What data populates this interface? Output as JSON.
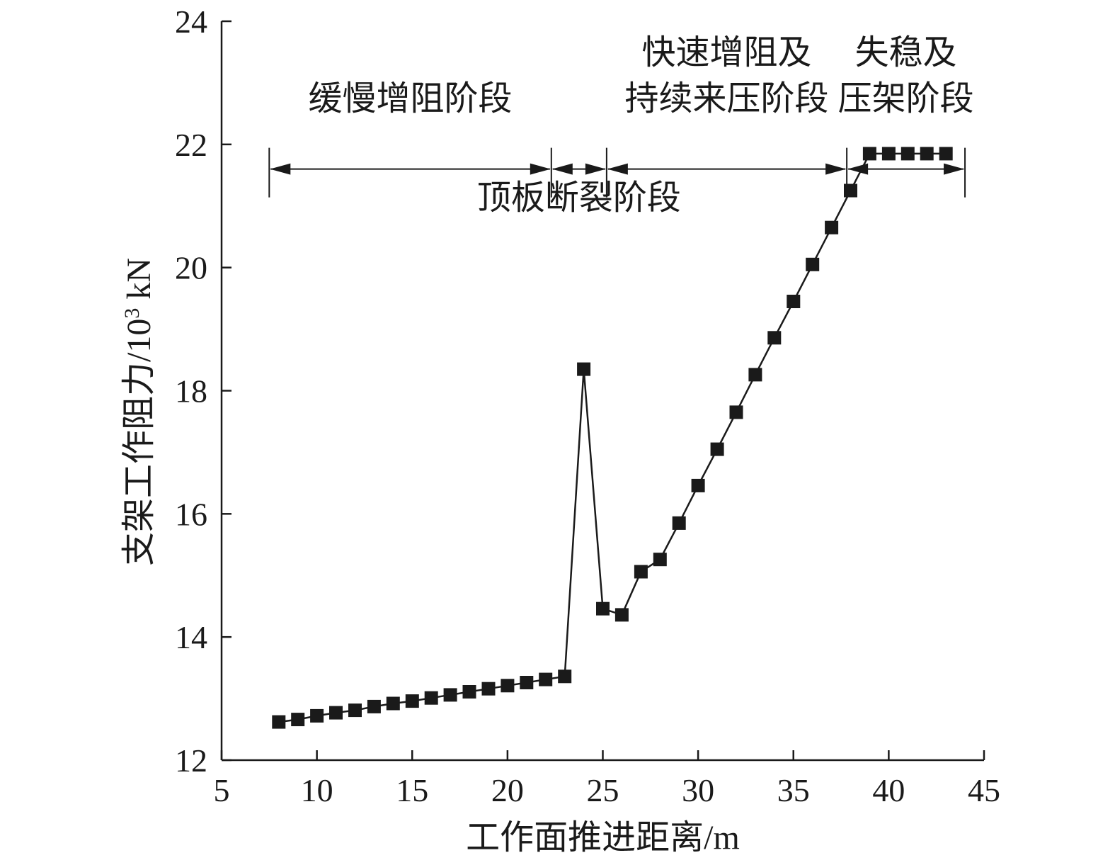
{
  "chart_data": {
    "type": "line",
    "title": "",
    "xlabel": "工作面推进距离/m",
    "ylabel_main": "支架工作阻力/10",
    "ylabel_sup": "3",
    "ylabel_unit": " kN",
    "xlim": [
      5,
      45
    ],
    "ylim": [
      12,
      24
    ],
    "xticks": [
      5,
      10,
      15,
      20,
      25,
      30,
      35,
      40,
      45
    ],
    "yticks": [
      12,
      14,
      16,
      18,
      20,
      22,
      24
    ],
    "grid": false,
    "marker": "square",
    "series": [
      {
        "x": [
          8,
          9,
          10,
          11,
          12,
          13,
          14,
          15,
          16,
          17,
          18,
          19,
          20,
          21,
          22,
          23,
          24,
          25,
          26,
          27,
          28,
          29,
          30,
          31,
          32,
          33,
          34,
          35,
          36,
          37,
          38,
          39,
          40,
          41,
          42,
          43
        ],
        "y": [
          12.62,
          12.66,
          12.72,
          12.77,
          12.81,
          12.87,
          12.92,
          12.96,
          13.01,
          13.06,
          13.11,
          13.16,
          13.21,
          13.26,
          13.31,
          13.36,
          18.35,
          14.46,
          14.36,
          15.06,
          15.26,
          15.85,
          16.46,
          17.05,
          17.65,
          18.26,
          18.86,
          19.45,
          20.05,
          20.65,
          21.25,
          21.85,
          21.85,
          21.85,
          21.85,
          21.85
        ]
      }
    ],
    "stage_boundaries": [
      7.5,
      22.3,
      25.2,
      37.8,
      44
    ],
    "arrow_y": 21.6,
    "stages": [
      {
        "lines": [
          "缓慢增阻阶段"
        ],
        "from": 7.5,
        "to": 22.3
      },
      {
        "lines": [
          "顶板断裂阶段"
        ],
        "from": 22.3,
        "to": 25.2
      },
      {
        "lines": [
          "快速增阻及",
          "持续来压阶段"
        ],
        "from": 25.2,
        "to": 37.8
      },
      {
        "lines": [
          "失稳及",
          "压架阶段"
        ],
        "from": 37.8,
        "to": 44
      }
    ]
  }
}
